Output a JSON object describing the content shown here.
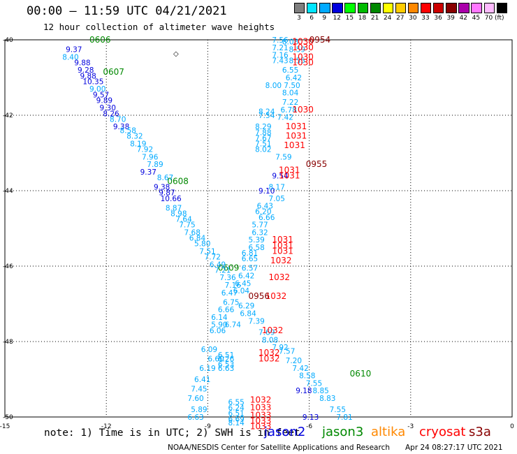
{
  "header": {
    "title": "00:00 – 11:59 UTC 04/21/2021",
    "subtitle": "12 hour collection of altimeter wave heights"
  },
  "scale": {
    "bins": [
      {
        "label": "3",
        "color": "#7f7f7f"
      },
      {
        "label": "6",
        "color": "#00e5ff"
      },
      {
        "label": "9",
        "color": "#00aaff"
      },
      {
        "label": "12",
        "color": "#0000dd"
      },
      {
        "label": "15",
        "color": "#00ff00"
      },
      {
        "label": "18",
        "color": "#00bb00"
      },
      {
        "label": "21",
        "color": "#008800"
      },
      {
        "label": "24",
        "color": "#ffff00"
      },
      {
        "label": "27",
        "color": "#ffcc00"
      },
      {
        "label": "30",
        "color": "#ff8800"
      },
      {
        "label": "33",
        "color": "#ff0000"
      },
      {
        "label": "36",
        "color": "#cc0000"
      },
      {
        "label": "39",
        "color": "#880000"
      },
      {
        "label": "42",
        "color": "#aa00aa"
      },
      {
        "label": "45",
        "color": "#ff77ff"
      },
      {
        "label": "70",
        "color": "#ffbbff"
      },
      {
        "label": "",
        "color": "#000000"
      }
    ],
    "unit": "(ft)"
  },
  "map": {
    "lon_ticks": [
      "-15",
      "-12",
      "-9",
      "-6",
      "-3",
      "0"
    ],
    "lat_ticks": [
      "-40",
      "-42",
      "-44",
      "-46",
      "-48",
      "-50"
    ],
    "land_marker": "◇"
  },
  "chart_data": {
    "type": "scatter",
    "title": "00:00 – 11:59 UTC 04/21/2021",
    "subtitle": "12 hour collection of altimeter wave heights",
    "xlim": [
      -15,
      0
    ],
    "ylim": [
      -50,
      -40
    ],
    "xlabel": "",
    "ylabel": "",
    "series": [
      {
        "name": "jason2",
        "color": "#0000dd",
        "points": [
          {
            "lon": -13.2,
            "lat": -40.25,
            "label": "9.37"
          },
          {
            "lon": -12.95,
            "lat": -40.6,
            "label": "9.88"
          },
          {
            "lon": -12.85,
            "lat": -40.8,
            "label": "9.28"
          },
          {
            "lon": -12.78,
            "lat": -40.95,
            "label": "9.88"
          },
          {
            "lon": -12.7,
            "lat": -41.1,
            "label": "10.35"
          },
          {
            "lon": -12.4,
            "lat": -41.45,
            "label": "9.57"
          },
          {
            "lon": -12.3,
            "lat": -41.6,
            "label": "9.89"
          },
          {
            "lon": -12.2,
            "lat": -41.8,
            "label": "9.30"
          },
          {
            "lon": -12.1,
            "lat": -41.95,
            "label": "8.26"
          },
          {
            "lon": -11.8,
            "lat": -42.3,
            "label": "9.38"
          },
          {
            "lon": -11.0,
            "lat": -43.5,
            "label": "9.37"
          },
          {
            "lon": -10.6,
            "lat": -43.9,
            "label": "9.38"
          },
          {
            "lon": -10.45,
            "lat": -44.05,
            "label": "9.87"
          },
          {
            "lon": -10.4,
            "lat": -44.2,
            "label": "10.66"
          },
          {
            "lon": -7.1,
            "lat": -43.6,
            "label": "9.54"
          },
          {
            "lon": -7.5,
            "lat": -44.0,
            "label": "9.10"
          },
          {
            "lon": -6.4,
            "lat": -49.3,
            "label": "9.18"
          },
          {
            "lon": -6.2,
            "lat": -50.0,
            "label": "9.13"
          }
        ]
      },
      {
        "name": "jason3",
        "color": "#008800",
        "points": [
          {
            "lon": -12.5,
            "lat": -40.0,
            "label": "0606"
          },
          {
            "lon": -12.1,
            "lat": -40.85,
            "label": "0607"
          },
          {
            "lon": -10.2,
            "lat": -43.75,
            "label": "0608"
          },
          {
            "lon": -8.7,
            "lat": -46.05,
            "label": "0609"
          },
          {
            "lon": -4.8,
            "lat": -48.85,
            "label": "0610"
          }
        ]
      },
      {
        "name": "s3a",
        "color": "#00aaff",
        "points": [
          {
            "lon": -13.3,
            "lat": -40.45,
            "label": "8.40"
          },
          {
            "lon": -12.5,
            "lat": -41.3,
            "label": "9.00"
          },
          {
            "lon": -11.9,
            "lat": -42.1,
            "label": "8.70"
          },
          {
            "lon": -11.6,
            "lat": -42.4,
            "label": "8.58"
          },
          {
            "lon": -11.4,
            "lat": -42.55,
            "label": "8.32"
          },
          {
            "lon": -11.3,
            "lat": -42.75,
            "label": "8.19"
          },
          {
            "lon": -11.1,
            "lat": -42.9,
            "label": "7.92"
          },
          {
            "lon": -10.95,
            "lat": -43.1,
            "label": "7.96"
          },
          {
            "lon": -10.8,
            "lat": -43.3,
            "label": "7.89"
          },
          {
            "lon": -10.5,
            "lat": -43.65,
            "label": "8.67"
          },
          {
            "lon": -10.25,
            "lat": -44.45,
            "label": "8.87"
          },
          {
            "lon": -10.1,
            "lat": -44.6,
            "label": "8.98"
          },
          {
            "lon": -9.95,
            "lat": -44.75,
            "label": "7.64"
          },
          {
            "lon": -9.85,
            "lat": -44.9,
            "label": "7.75"
          },
          {
            "lon": -9.7,
            "lat": -45.1,
            "label": "7.68"
          },
          {
            "lon": -9.55,
            "lat": -45.25,
            "label": "6.84"
          },
          {
            "lon": -9.4,
            "lat": -45.4,
            "label": "5.80"
          },
          {
            "lon": -9.25,
            "lat": -45.6,
            "label": "7.51"
          },
          {
            "lon": -9.1,
            "lat": -45.75,
            "label": "7.72"
          },
          {
            "lon": -8.95,
            "lat": -45.95,
            "label": "6.49"
          },
          {
            "lon": -8.8,
            "lat": -46.1,
            "label": "7.21"
          },
          {
            "lon": -8.65,
            "lat": -46.3,
            "label": "7.36"
          },
          {
            "lon": -8.5,
            "lat": -46.5,
            "label": "7.16"
          },
          {
            "lon": -8.6,
            "lat": -46.7,
            "label": "6.47"
          },
          {
            "lon": -8.55,
            "lat": -46.95,
            "label": "6.75"
          },
          {
            "lon": -8.7,
            "lat": -47.15,
            "label": "6.66"
          },
          {
            "lon": -8.9,
            "lat": -47.35,
            "label": "6.14"
          },
          {
            "lon": -8.9,
            "lat": -47.55,
            "label": "5.90"
          },
          {
            "lon": -8.95,
            "lat": -47.7,
            "label": "6.06"
          },
          {
            "lon": -9.2,
            "lat": -48.2,
            "label": "6.09"
          },
          {
            "lon": -9.0,
            "lat": -48.45,
            "label": "6.60"
          },
          {
            "lon": -9.25,
            "lat": -48.7,
            "label": "6.19"
          },
          {
            "lon": -9.4,
            "lat": -49.0,
            "label": "6.41"
          },
          {
            "lon": -9.5,
            "lat": -49.25,
            "label": "7.45"
          },
          {
            "lon": -9.6,
            "lat": -49.5,
            "label": "7.60"
          },
          {
            "lon": -9.5,
            "lat": -49.8,
            "label": "5.89"
          },
          {
            "lon": -9.6,
            "lat": -50.0,
            "label": "6.63"
          },
          {
            "lon": -7.1,
            "lat": -40.0,
            "label": "7.56"
          },
          {
            "lon": -7.1,
            "lat": -40.2,
            "label": "7.21"
          },
          {
            "lon": -7.1,
            "lat": -40.4,
            "label": "7.16"
          },
          {
            "lon": -7.1,
            "lat": -40.55,
            "label": "7.43"
          },
          {
            "lon": -7.3,
            "lat": -41.2,
            "label": "8.00"
          },
          {
            "lon": -7.5,
            "lat": -41.9,
            "label": "8.24"
          },
          {
            "lon": -7.5,
            "lat": -42.0,
            "label": "7.54"
          },
          {
            "lon": -7.6,
            "lat": -42.3,
            "label": "8.29"
          },
          {
            "lon": -7.6,
            "lat": -42.45,
            "label": "7.88"
          },
          {
            "lon": -7.6,
            "lat": -42.6,
            "label": "7.67"
          },
          {
            "lon": -7.6,
            "lat": -42.75,
            "label": "7.51"
          },
          {
            "lon": -7.6,
            "lat": -42.9,
            "label": "8.02"
          },
          {
            "lon": -7.0,
            "lat": -43.1,
            "label": "7.59"
          },
          {
            "lon": -7.2,
            "lat": -43.9,
            "label": "8.17"
          },
          {
            "lon": -7.2,
            "lat": -44.2,
            "label": "7.05"
          },
          {
            "lon": -7.55,
            "lat": -44.4,
            "label": "6.43"
          },
          {
            "lon": -7.6,
            "lat": -44.55,
            "label": "6.20"
          },
          {
            "lon": -7.5,
            "lat": -44.7,
            "label": "6.66"
          },
          {
            "lon": -7.7,
            "lat": -44.9,
            "label": "5.77"
          },
          {
            "lon": -7.7,
            "lat": -45.1,
            "label": "6.32"
          },
          {
            "lon": -7.8,
            "lat": -45.3,
            "label": "5.39"
          },
          {
            "lon": -7.8,
            "lat": -45.5,
            "label": "6.58"
          },
          {
            "lon": -8.0,
            "lat": -45.65,
            "label": "6.81"
          },
          {
            "lon": -8.0,
            "lat": -45.8,
            "label": "6.65"
          },
          {
            "lon": -8.0,
            "lat": -46.05,
            "label": "6.57"
          },
          {
            "lon": -8.1,
            "lat": -46.25,
            "label": "6.42"
          },
          {
            "lon": -8.2,
            "lat": -46.45,
            "label": "6.45"
          },
          {
            "lon": -8.25,
            "lat": -46.65,
            "label": "6.04"
          },
          {
            "lon": -8.1,
            "lat": -47.05,
            "label": "6.29"
          },
          {
            "lon": -8.05,
            "lat": -47.25,
            "label": "6.84"
          },
          {
            "lon": -8.5,
            "lat": -47.55,
            "label": "6.74"
          },
          {
            "lon": -7.8,
            "lat": -47.45,
            "label": "7.39"
          },
          {
            "lon": -7.5,
            "lat": -47.75,
            "label": "7.69"
          },
          {
            "lon": -7.4,
            "lat": -47.95,
            "label": "8.08"
          },
          {
            "lon": -7.1,
            "lat": -48.15,
            "label": "7.92"
          },
          {
            "lon": -6.9,
            "lat": -48.25,
            "label": "7.57"
          },
          {
            "lon": -6.7,
            "lat": -48.5,
            "label": "7.20"
          },
          {
            "lon": -6.5,
            "lat": -48.7,
            "label": "7.42"
          },
          {
            "lon": -6.3,
            "lat": -48.9,
            "label": "8.58"
          },
          {
            "lon": -6.1,
            "lat": -49.1,
            "label": "7.55"
          },
          {
            "lon": -5.9,
            "lat": -49.3,
            "label": "8.85"
          },
          {
            "lon": -5.7,
            "lat": -49.5,
            "label": "8.83"
          },
          {
            "lon": -5.4,
            "lat": -49.8,
            "label": "7.55"
          },
          {
            "lon": -5.2,
            "lat": -50.0,
            "label": "7.81"
          },
          {
            "lon": -8.7,
            "lat": -48.35,
            "label": "6.51"
          },
          {
            "lon": -8.7,
            "lat": -48.45,
            "label": "6.26"
          },
          {
            "lon": -8.7,
            "lat": -48.6,
            "label": "6.53"
          },
          {
            "lon": -8.7,
            "lat": -48.7,
            "label": "6.63"
          },
          {
            "lon": -8.4,
            "lat": -49.6,
            "label": "6.55"
          },
          {
            "lon": -8.4,
            "lat": -49.75,
            "label": "6.24"
          },
          {
            "lon": -8.4,
            "lat": -49.9,
            "label": "6.51"
          },
          {
            "lon": -8.4,
            "lat": -50.05,
            "label": "6.69"
          },
          {
            "lon": -8.4,
            "lat": -50.15,
            "label": "8.14"
          },
          {
            "lon": -6.8,
            "lat": -40.05,
            "label": "8.08"
          },
          {
            "lon": -6.6,
            "lat": -40.25,
            "label": "8.59"
          },
          {
            "lon": -6.6,
            "lat": -40.55,
            "label": "8.55"
          },
          {
            "lon": -6.8,
            "lat": -40.8,
            "label": "6.55"
          },
          {
            "lon": -6.7,
            "lat": -41.0,
            "label": "6.42"
          },
          {
            "lon": -6.75,
            "lat": -41.2,
            "label": "7.50"
          },
          {
            "lon": -6.8,
            "lat": -41.4,
            "label": "8.04"
          },
          {
            "lon": -6.8,
            "lat": -41.65,
            "label": "7.22"
          },
          {
            "lon": -6.85,
            "lat": -41.85,
            "label": "6.78"
          },
          {
            "lon": -6.95,
            "lat": -42.05,
            "label": "7.42"
          }
        ]
      },
      {
        "name": "cryosat",
        "color": "#ff0000",
        "points": [
          {
            "lon": -6.5,
            "lat": -40.05,
            "label": "1030"
          },
          {
            "lon": -6.5,
            "lat": -40.2,
            "label": "1030"
          },
          {
            "lon": -6.5,
            "lat": -40.45,
            "label": "1030"
          },
          {
            "lon": -6.5,
            "lat": -40.6,
            "label": "1030"
          },
          {
            "lon": -6.5,
            "lat": -41.85,
            "label": "1030"
          },
          {
            "lon": -6.7,
            "lat": -42.3,
            "label": "1031"
          },
          {
            "lon": -6.7,
            "lat": -42.55,
            "label": "1031"
          },
          {
            "lon": -6.75,
            "lat": -42.8,
            "label": "1031"
          },
          {
            "lon": -6.9,
            "lat": -43.45,
            "label": "1031"
          },
          {
            "lon": -6.9,
            "lat": -43.6,
            "label": "1031"
          },
          {
            "lon": -7.1,
            "lat": -45.3,
            "label": "1031"
          },
          {
            "lon": -7.1,
            "lat": -45.45,
            "label": "1031"
          },
          {
            "lon": -7.1,
            "lat": -45.6,
            "label": "1031"
          },
          {
            "lon": -7.15,
            "lat": -45.85,
            "label": "1032"
          },
          {
            "lon": -7.2,
            "lat": -46.3,
            "label": "1032"
          },
          {
            "lon": -7.3,
            "lat": -46.8,
            "label": "1032"
          },
          {
            "lon": -7.4,
            "lat": -47.7,
            "label": "1032"
          },
          {
            "lon": -7.5,
            "lat": -48.3,
            "label": "1032"
          },
          {
            "lon": -7.5,
            "lat": -48.45,
            "label": "1032"
          },
          {
            "lon": -7.75,
            "lat": -49.55,
            "label": "1032"
          },
          {
            "lon": -7.75,
            "lat": -49.75,
            "label": "1033"
          },
          {
            "lon": -7.75,
            "lat": -49.95,
            "label": "1033"
          },
          {
            "lon": -7.75,
            "lat": -50.1,
            "label": "1033"
          },
          {
            "lon": -7.75,
            "lat": -50.25,
            "label": "1033"
          }
        ]
      },
      {
        "name": "s3a-dark",
        "color": "#880000",
        "points": [
          {
            "lon": -6.0,
            "lat": -40.0,
            "label": "0954"
          },
          {
            "lon": -6.1,
            "lat": -43.3,
            "label": "0955"
          },
          {
            "lon": -7.8,
            "lat": -46.8,
            "label": "0956"
          }
        ]
      }
    ]
  },
  "legend": {
    "note": "note:  1) Time is in UTC;  2) SWH is in feet",
    "entries": [
      {
        "label": "jason2",
        "color": "#0000dd"
      },
      {
        "label": "jason3",
        "color": "#008800"
      },
      {
        "label": "altika",
        "color": "#ff8800"
      },
      {
        "label": "cryosat",
        "color": "#ff0000"
      },
      {
        "label": "s3a",
        "color": "#880000"
      }
    ]
  },
  "footer": {
    "credit": "NOAA/NESDIS Center for Satellite Applications and Research",
    "timestamp": "Apr 24 08:27:17 UTC 2021"
  }
}
